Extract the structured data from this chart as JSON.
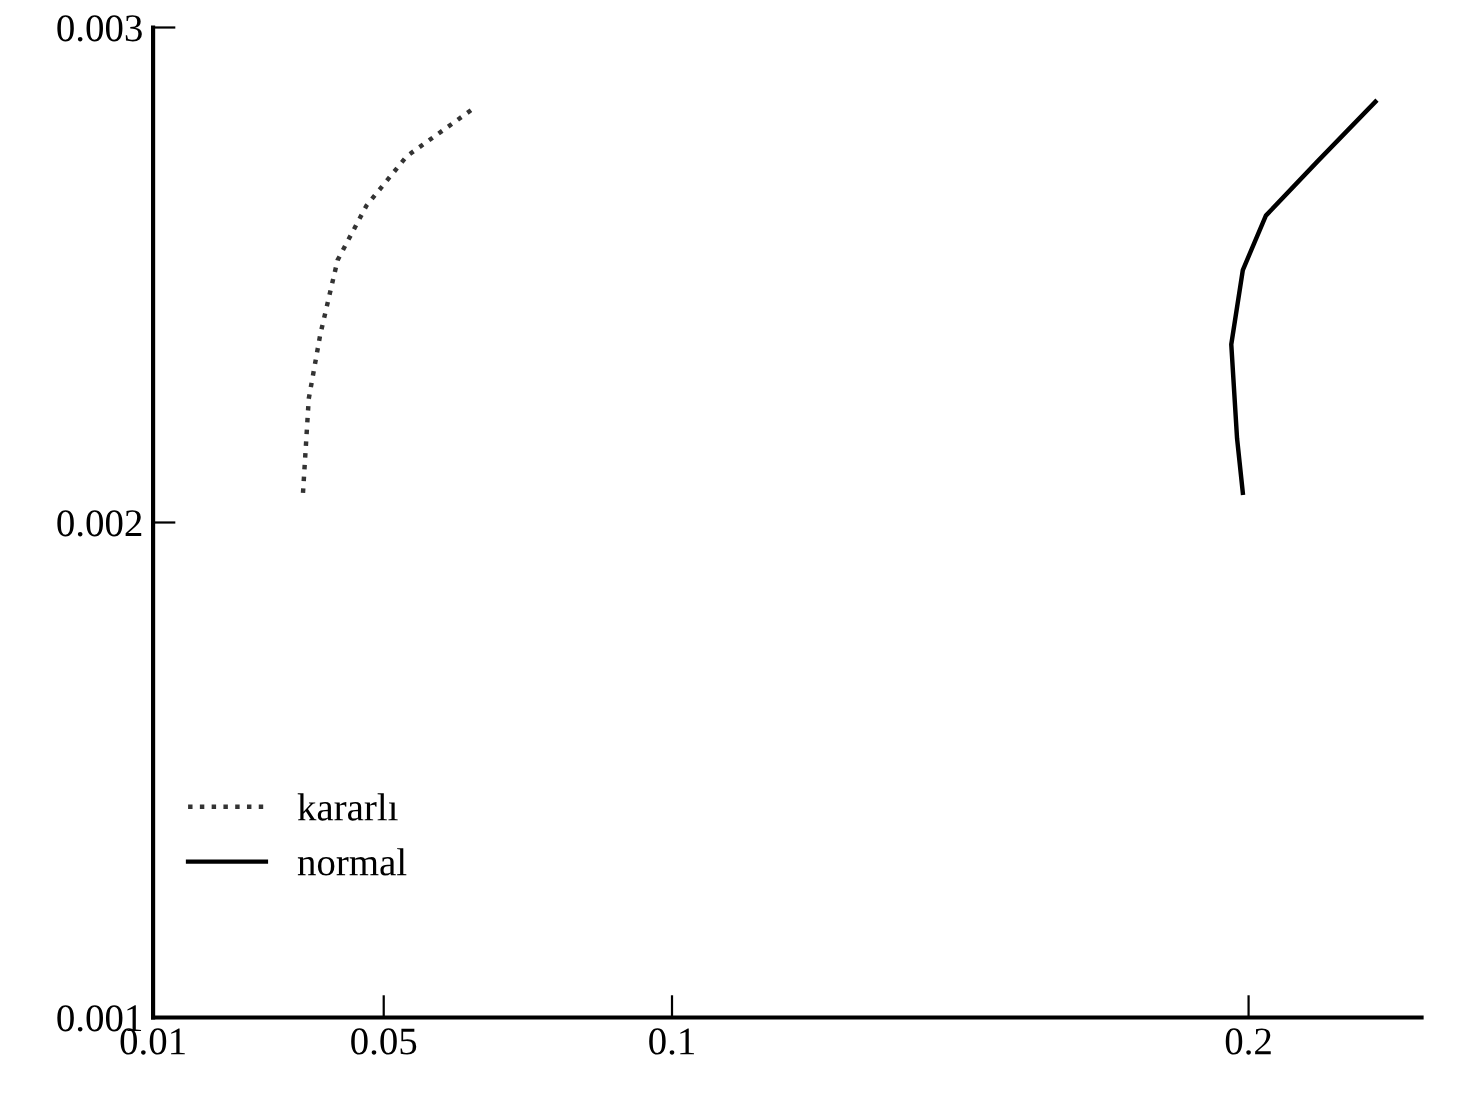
{
  "chart_data": {
    "type": "line",
    "xlim": [
      0.01,
      0.23
    ],
    "xticks": [
      0.01,
      0.05,
      0.1,
      0.2
    ],
    "ylim": [
      0.001,
      0.003
    ],
    "yticks": [
      0.001,
      0.002,
      0.003
    ],
    "grid": false,
    "legend": "bottom left",
    "series": [
      {
        "name": "kararlı",
        "color": "#333333",
        "line_style": "dotted",
        "x": [
          0.036,
          0.037,
          0.039,
          0.042,
          0.047,
          0.054,
          0.066
        ],
        "values": [
          0.00206,
          0.00225,
          0.00238,
          0.00253,
          0.00264,
          0.00274,
          0.00284
        ]
      },
      {
        "name": "normal",
        "color": "#000000",
        "line_style": "solid",
        "x": [
          0.199,
          0.198,
          0.197,
          0.199,
          0.203,
          0.212,
          0.222
        ],
        "values": [
          0.00206,
          0.00217,
          0.00236,
          0.00251,
          0.00262,
          0.00273,
          0.00285
        ]
      }
    ]
  }
}
